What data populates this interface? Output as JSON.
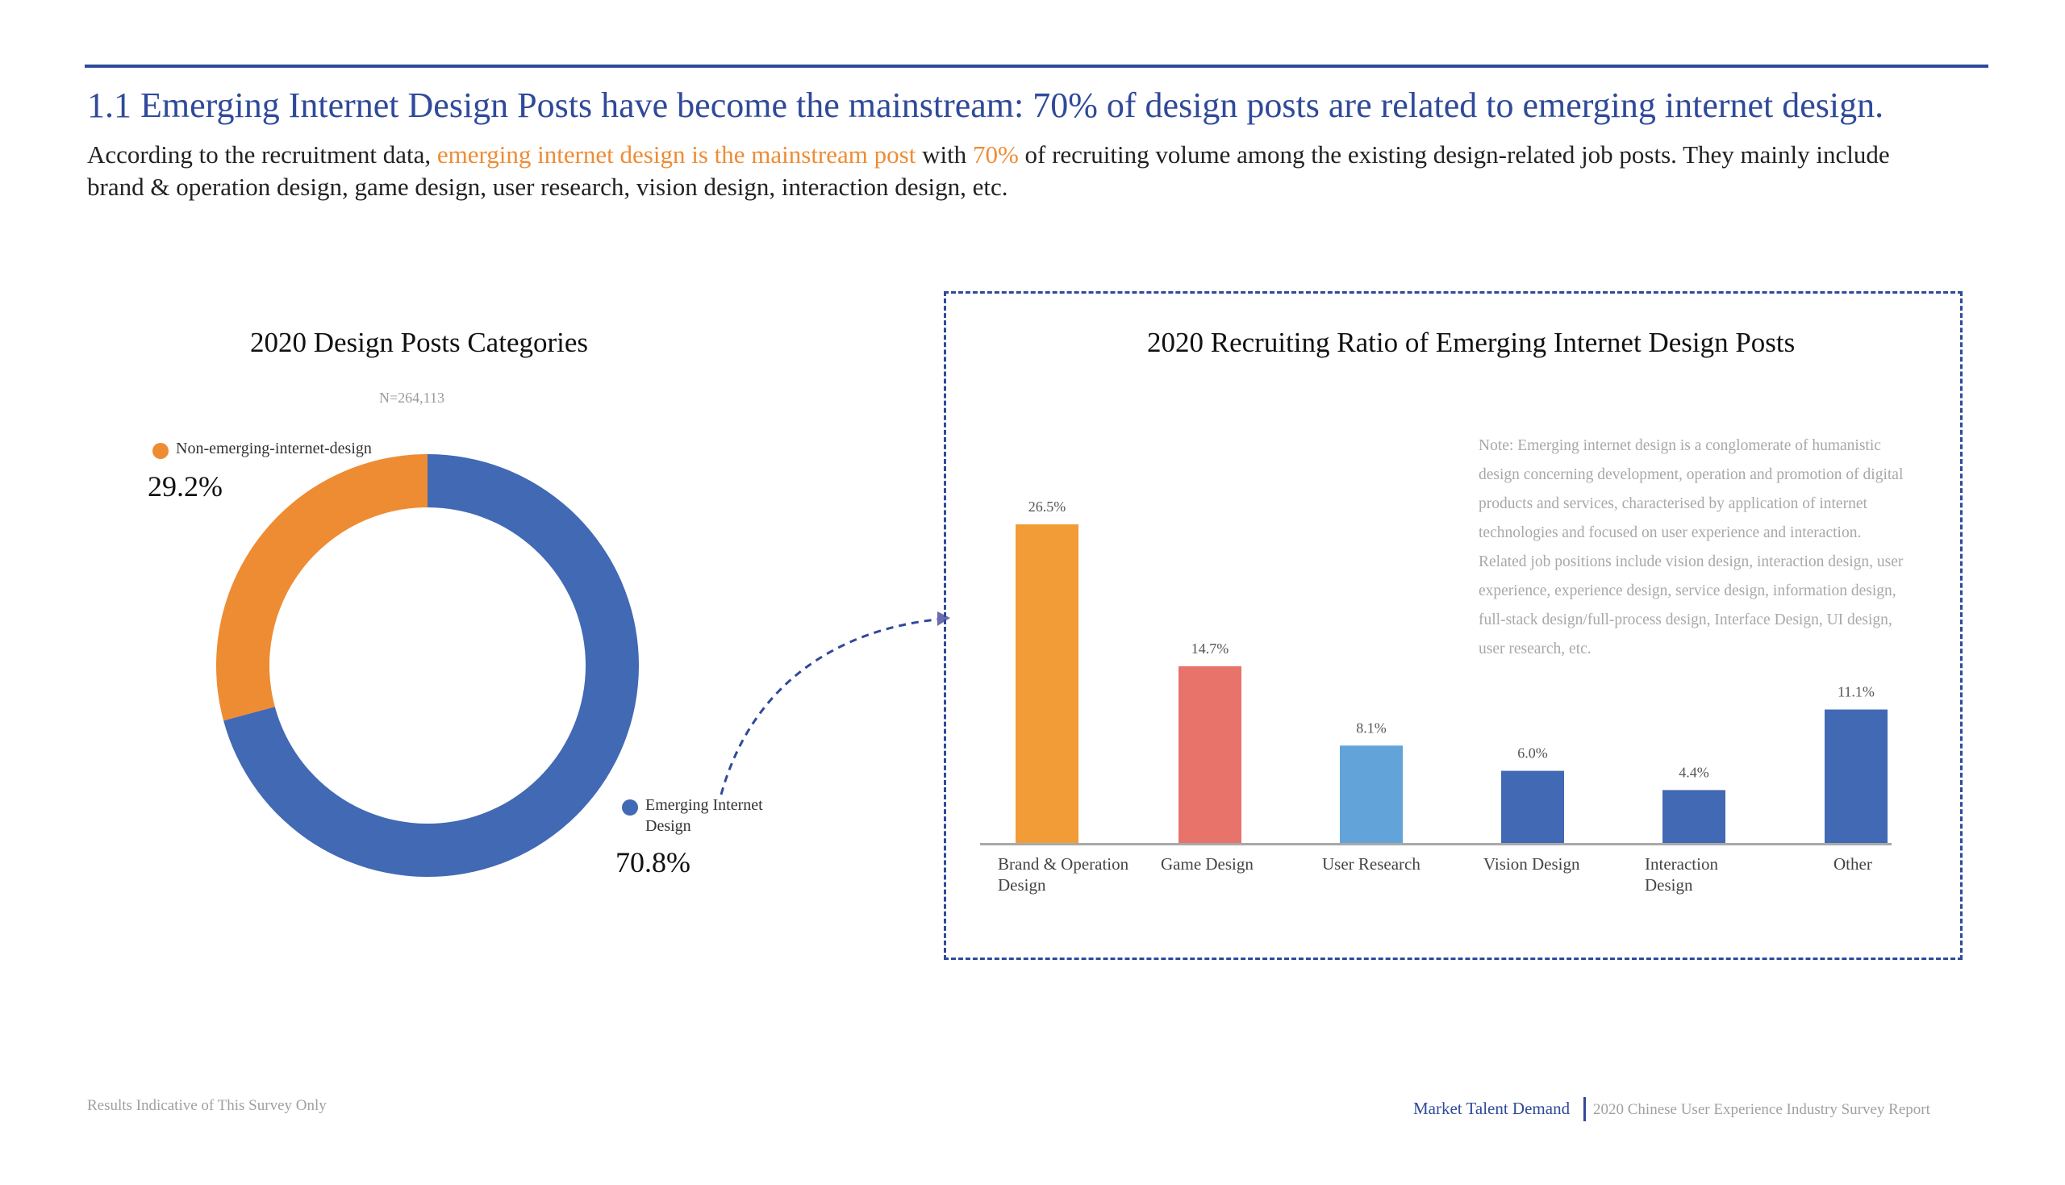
{
  "header": {
    "title": "1.1 Emerging Internet Design Posts have become the mainstream: 70% of design posts are related to emerging internet design.",
    "intro_part1": "According to the recruitment data, ",
    "intro_highlight1": "emerging internet design is the mainstream post",
    "intro_part2": " with ",
    "intro_highlight2": "70%",
    "intro_part3": " of recruiting volume among the existing design-related job posts. They mainly include brand & operation design, game design, user research, vision design, interaction design, etc."
  },
  "colors": {
    "accent_blue": "#2f4a9a",
    "highlight_orange": "#ee8c34"
  },
  "chart_data": [
    {
      "type": "pie",
      "title": "2020 Design Posts Categories",
      "subtitle": "N=264,113",
      "slices": [
        {
          "label": "Emerging Internet Design",
          "value": 70.8,
          "value_label": "70.8%",
          "color": "#4169b4"
        },
        {
          "label": "Non-emerging-internet-design",
          "value": 29.2,
          "value_label": "29.2%",
          "color": "#ee8c34"
        }
      ]
    },
    {
      "type": "bar",
      "title": "2020 Recruiting Ratio of Emerging Internet Design Posts",
      "note": "Note: Emerging internet design is a conglomerate of humanistic design concerning development, operation and promotion of digital products and services, characterised by application of internet technologies and focused on user experience and interaction. Related job positions include vision design, interaction design, user experience, experience design, service design, information design, full-stack design/full-process design, Interface Design, UI design, user research, etc.",
      "categories": [
        "Brand & Operation Design",
        "Game Design",
        "User Research",
        "Vision Design",
        "Interaction Design",
        "Other"
      ],
      "values": [
        26.5,
        14.7,
        8.1,
        6.0,
        4.4,
        11.1
      ],
      "value_labels": [
        "26.5%",
        "14.7%",
        "8.1%",
        "6.0%",
        "4.4%",
        "11.1%"
      ],
      "colors": [
        "#f29c38",
        "#e8736a",
        "#62a4da",
        "#4169b4",
        "#4169b4",
        "#4169b4"
      ],
      "ylim": [
        0,
        30
      ]
    }
  ],
  "footer": {
    "left": "Results Indicative of This Survey Only",
    "right_section": "Market Talent Demand",
    "right_report": "2020 Chinese User Experience Industry Survey Report"
  }
}
